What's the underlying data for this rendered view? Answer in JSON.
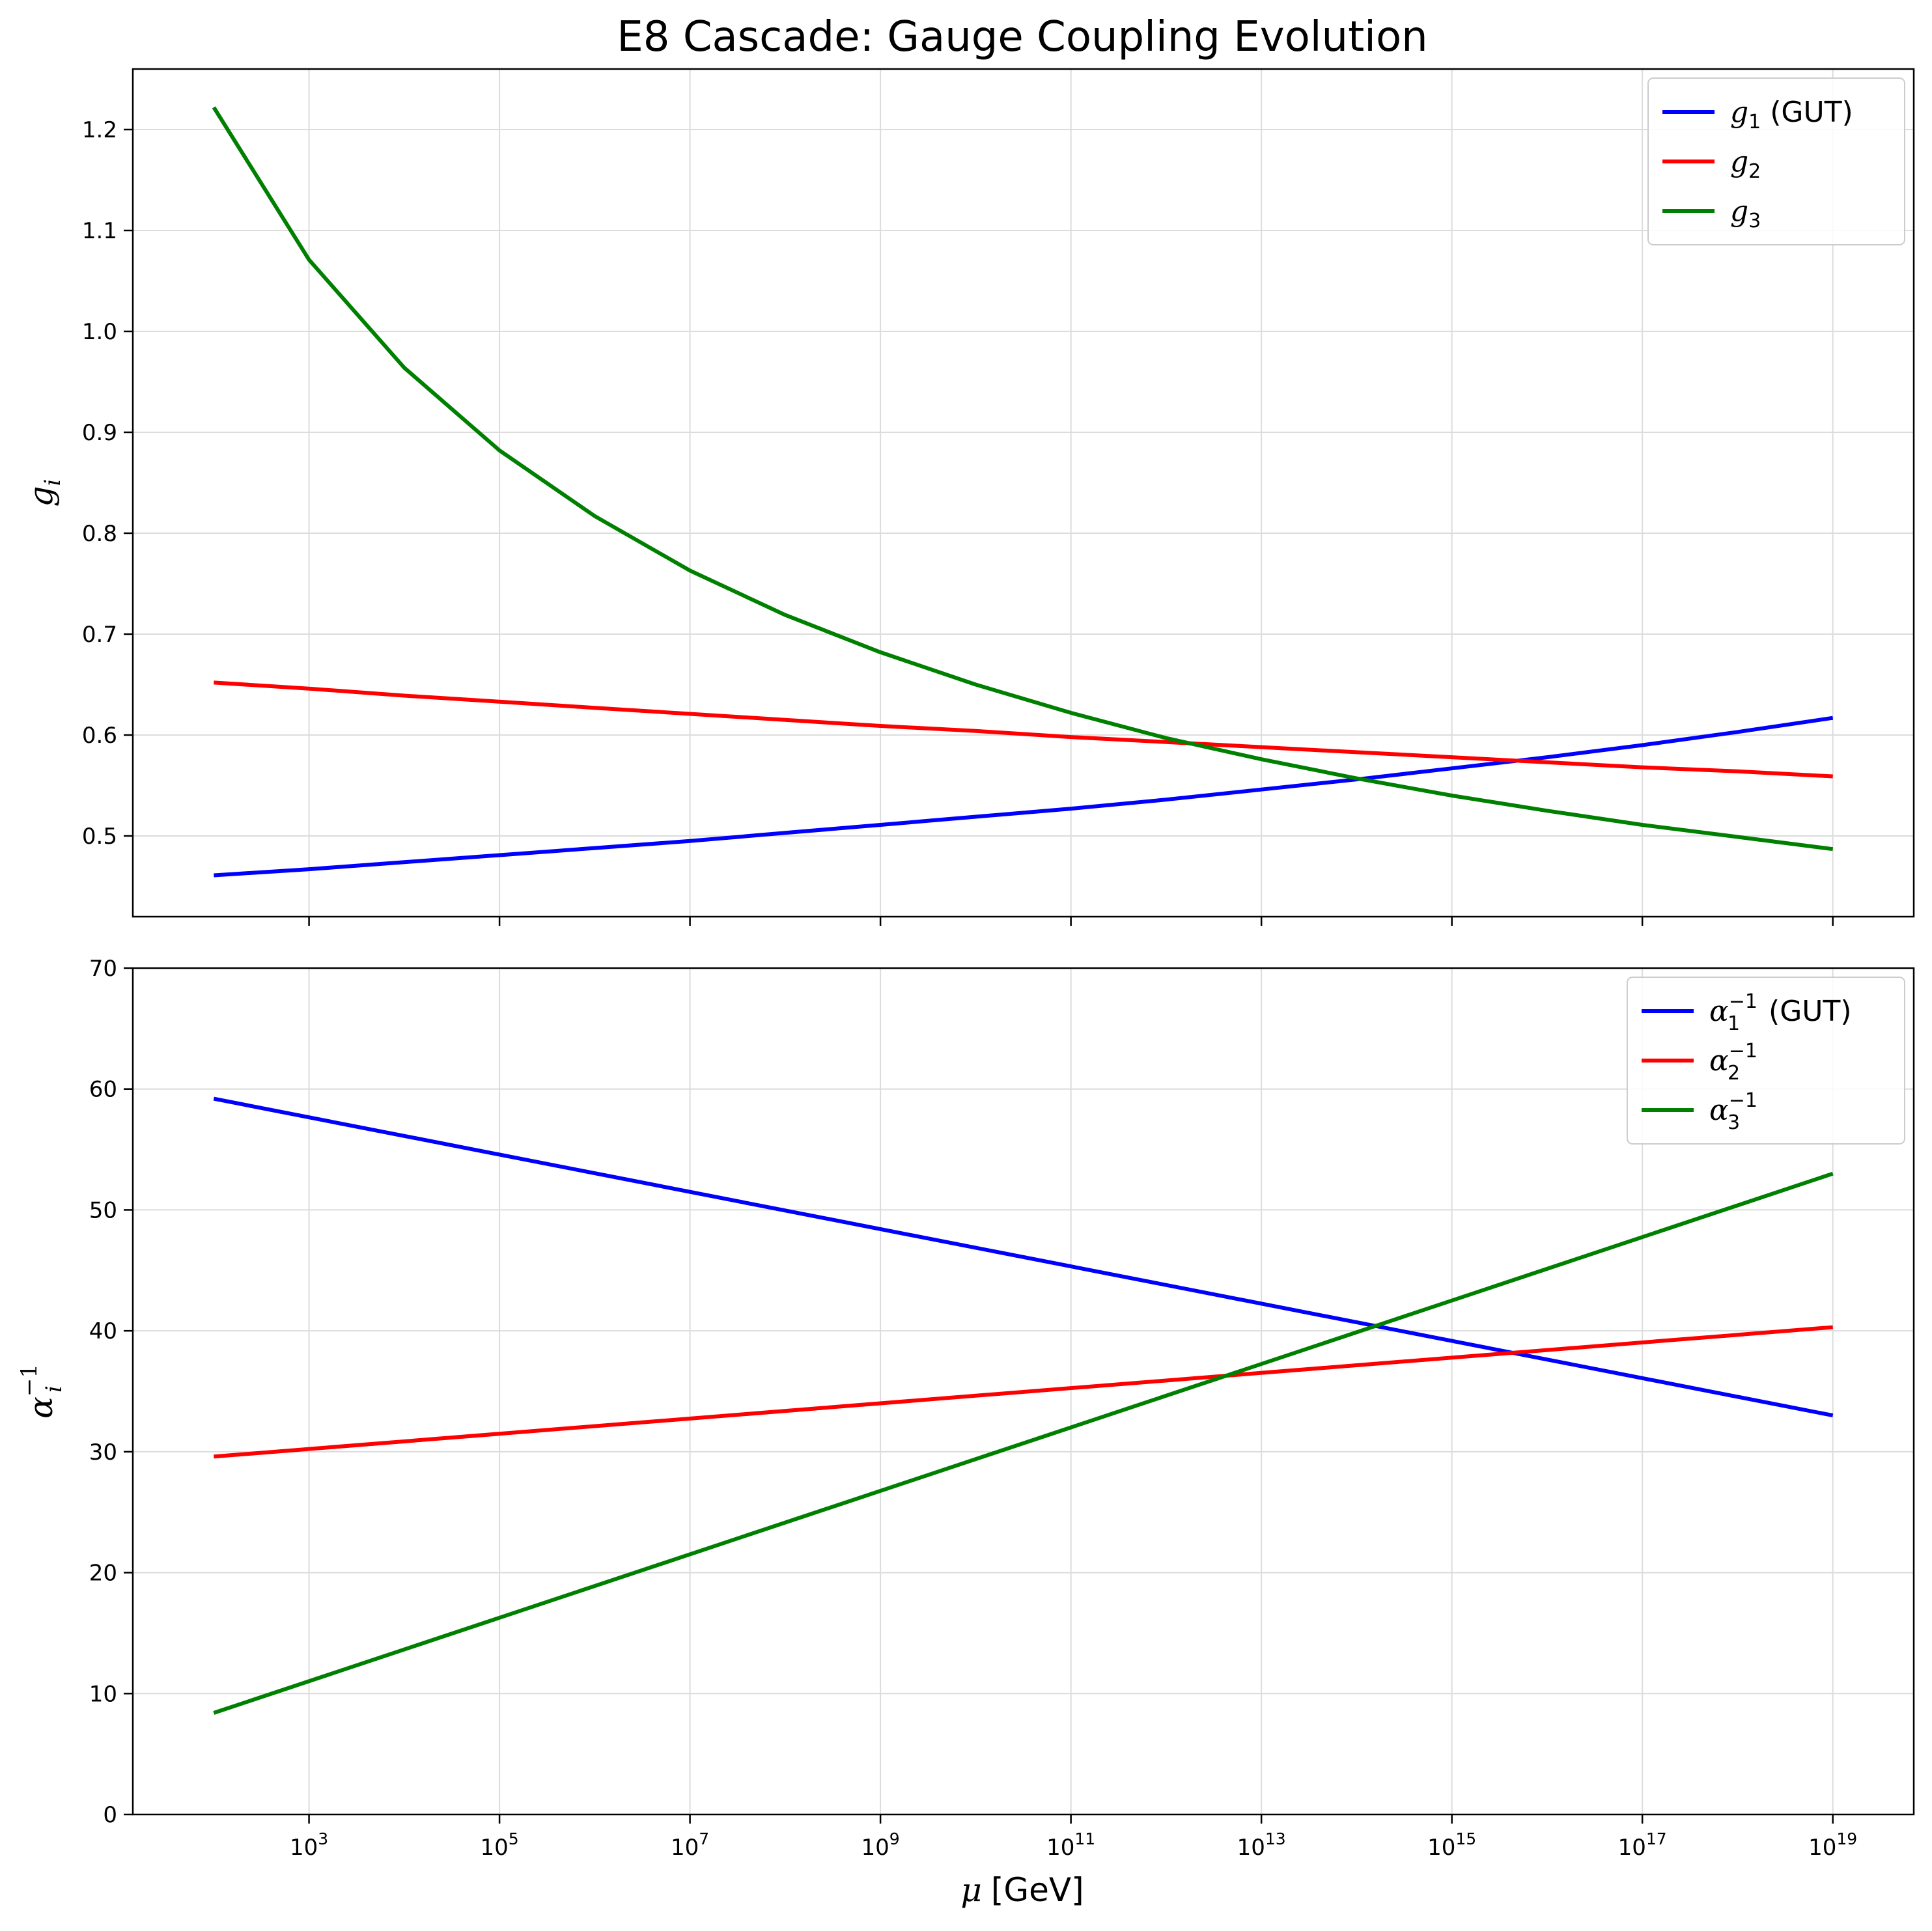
{
  "title": "E8 Cascade: Gauge Coupling Evolution",
  "x_axis": {
    "label_symbol": "μ",
    "label_unit": "[GeV]",
    "scale": "log",
    "tick_base": "10",
    "tick_exponents": [
      "3",
      "5",
      "7",
      "9",
      "11",
      "13",
      "15",
      "17",
      "19"
    ]
  },
  "chart_data": [
    {
      "type": "line",
      "xscale": "log",
      "xlim_log10": [
        1.15,
        19.85
      ],
      "ylim": [
        0.42,
        1.26
      ],
      "ylabel": "g_i",
      "yticks": [
        0.5,
        0.6,
        0.7,
        0.8,
        0.9,
        1.0,
        1.1,
        1.2
      ],
      "ytick_labels": [
        "0.5",
        "0.6",
        "0.7",
        "0.8",
        "0.9",
        "1.0",
        "1.1",
        "1.2"
      ],
      "grid": true,
      "legend_position": "top-right",
      "x": [
        100,
        1000.0,
        10000.0,
        100000.0,
        1000000.0,
        10000000.0,
        100000000.0,
        1000000000.0,
        10000000000.0,
        100000000000.0,
        1000000000000.0,
        10000000000000.0,
        100000000000000.0,
        1000000000000000.0,
        1e+16,
        1e+17,
        1e+18,
        1e+19
      ],
      "series": [
        {
          "name": "g1 (GUT)",
          "color": "#0000ff",
          "values": [
            0.461,
            0.467,
            0.474,
            0.481,
            0.488,
            0.495,
            0.503,
            0.511,
            0.519,
            0.527,
            0.536,
            0.546,
            0.556,
            0.567,
            0.578,
            0.59,
            0.603,
            0.617
          ]
        },
        {
          "name": "g2",
          "color": "#ff0000",
          "values": [
            0.652,
            0.646,
            0.639,
            0.633,
            0.627,
            0.621,
            0.615,
            0.609,
            0.604,
            0.598,
            0.593,
            0.588,
            0.583,
            0.578,
            0.573,
            0.568,
            0.564,
            0.559
          ]
        },
        {
          "name": "g3",
          "color": "#008000",
          "values": [
            1.222,
            1.071,
            0.964,
            0.882,
            0.817,
            0.763,
            0.719,
            0.682,
            0.65,
            0.622,
            0.597,
            0.576,
            0.557,
            0.54,
            0.525,
            0.511,
            0.499,
            0.487
          ]
        }
      ]
    },
    {
      "type": "line",
      "xscale": "log",
      "xlim_log10": [
        1.15,
        19.85
      ],
      "ylim": [
        0,
        70
      ],
      "ylabel": "α_i^-1",
      "yticks": [
        0,
        10,
        20,
        30,
        40,
        50,
        60,
        70
      ],
      "ytick_labels": [
        "0",
        "10",
        "20",
        "30",
        "40",
        "50",
        "60",
        "70"
      ],
      "grid": true,
      "legend_position": "top-right",
      "x": [
        100,
        1e+19
      ],
      "series": [
        {
          "name": "α1^-1 (GUT)",
          "color": "#0000ff",
          "values": [
            59.2,
            33.0
          ]
        },
        {
          "name": "α2^-1",
          "color": "#ff0000",
          "values": [
            29.6,
            40.3
          ]
        },
        {
          "name": "α3^-1",
          "color": "#008000",
          "values": [
            8.4,
            53.0
          ]
        }
      ]
    }
  ],
  "legends": [
    [
      {
        "symbol": "g",
        "sub": "1",
        "sup": "",
        "suffix": " (GUT)"
      },
      {
        "symbol": "g",
        "sub": "2",
        "sup": "",
        "suffix": ""
      },
      {
        "symbol": "g",
        "sub": "3",
        "sup": "",
        "suffix": ""
      }
    ],
    [
      {
        "symbol": "α",
        "sub": "1",
        "sup": "−1",
        "suffix": " (GUT)"
      },
      {
        "symbol": "α",
        "sub": "2",
        "sup": "−1",
        "suffix": ""
      },
      {
        "symbol": "α",
        "sub": "3",
        "sup": "−1",
        "suffix": ""
      }
    ]
  ],
  "ylabels": [
    {
      "symbol": "g",
      "sub": "i",
      "sup": ""
    },
    {
      "symbol": "α",
      "sub": "i",
      "sup": "−1"
    }
  ]
}
